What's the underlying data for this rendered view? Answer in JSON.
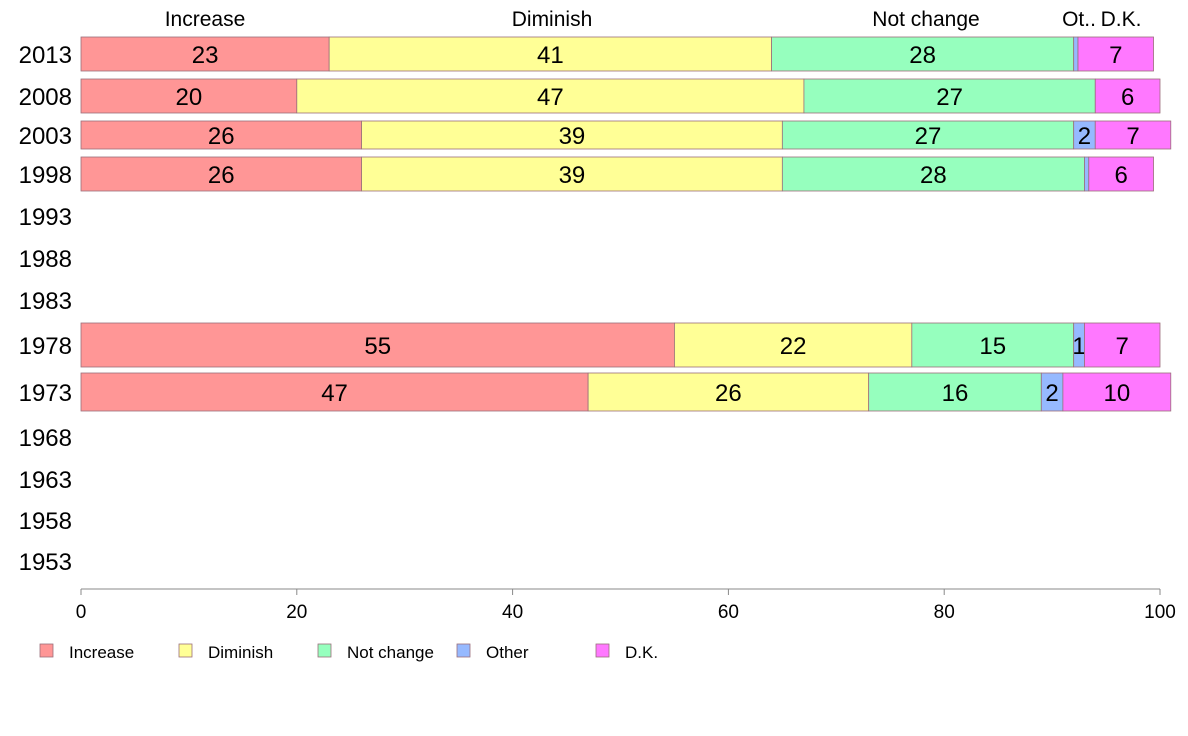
{
  "chart_data": {
    "type": "bar",
    "orientation": "horizontal",
    "stacked": true,
    "categories": [
      "2013",
      "2008",
      "2003",
      "1998",
      "1993",
      "1988",
      "1983",
      "1978",
      "1973",
      "1968",
      "1963",
      "1958",
      "1953"
    ],
    "series": [
      {
        "name": "Increase",
        "color": "#ff9696",
        "values": [
          23,
          20,
          26,
          26,
          null,
          null,
          null,
          55,
          47,
          null,
          null,
          null,
          null
        ]
      },
      {
        "name": "Diminish",
        "color": "#ffff96",
        "values": [
          41,
          47,
          39,
          39,
          null,
          null,
          null,
          22,
          26,
          null,
          null,
          null,
          null
        ]
      },
      {
        "name": "Not change",
        "color": "#96ffbe",
        "values": [
          28,
          27,
          27,
          28,
          null,
          null,
          null,
          15,
          16,
          null,
          null,
          null,
          null
        ]
      },
      {
        "name": "Other",
        "color": "#96b9ff",
        "values": [
          0.4,
          0,
          2,
          0.4,
          null,
          null,
          null,
          1,
          2,
          null,
          null,
          null,
          null
        ]
      },
      {
        "name": "D.K.",
        "color": "#ff78ff",
        "values": [
          7,
          6,
          7,
          6,
          null,
          null,
          null,
          7,
          10,
          null,
          null,
          null,
          null
        ]
      }
    ],
    "top_labels": [
      "Increase",
      "Diminish",
      "Not change",
      "Ot..",
      "D.K."
    ],
    "xlim": [
      0,
      100
    ],
    "xticks": [
      "0",
      "20",
      "40",
      "60",
      "80",
      "100"
    ],
    "legend": [
      "Increase",
      "Diminish",
      "Not change",
      "Other",
      "D.K."
    ],
    "legend_position": "bottom-left",
    "grid": false
  }
}
